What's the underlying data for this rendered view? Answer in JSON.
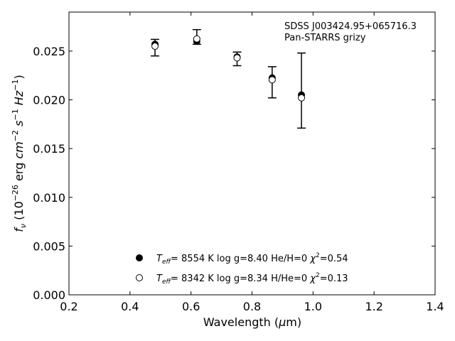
{
  "chart_data": {
    "type": "scatter",
    "annotations": [
      "SDSS J003424.95+065716.3",
      "Pan-STARRS grizy"
    ],
    "xlabel": {
      "text": "Wavelength (",
      "sym": "μ",
      "rest": "m)"
    },
    "ylabel": {
      "f": "f",
      "sub": "ν",
      "a": " (10",
      "exp1": "−26",
      "b": " erg ",
      "cm": "cm",
      "exp2": "−2",
      "s": "s",
      "exp3": "−1",
      "hz": "Hz",
      "exp4": "−1",
      "c": ")"
    },
    "xlim": [
      0.2,
      1.4
    ],
    "ylim": [
      0.0,
      0.029
    ],
    "x_ticks": [
      0.2,
      0.4,
      0.6,
      0.8,
      1.0,
      1.2,
      1.4
    ],
    "x_tick_labels": [
      "0.2",
      "0.4",
      "0.6",
      "0.8",
      "1.0",
      "1.2",
      "1.4"
    ],
    "y_ticks": [
      0.0,
      0.005,
      0.01,
      0.015,
      0.02,
      0.025
    ],
    "y_tick_labels": [
      "0.000",
      "0.005",
      "0.010",
      "0.015",
      "0.020",
      "0.025"
    ],
    "grid": false,
    "observed": {
      "x": [
        0.482,
        0.619,
        0.751,
        0.866,
        0.962
      ],
      "y": [
        0.02535,
        0.02645,
        0.0242,
        0.0218,
        0.02095
      ],
      "err": [
        0.00085,
        0.00075,
        0.0007,
        0.0016,
        0.00385
      ]
    },
    "series": [
      {
        "name": {
          "T": "T",
          "sub": "eff",
          "rest": "=  8554 K  log g=8.40  He/H=0  ",
          "chi": "χ",
          "sup": "2",
          "val": "=0.54"
        },
        "marker": "filled-circle",
        "x": [
          0.482,
          0.619,
          0.751,
          0.866,
          0.962
        ],
        "y": [
          0.0257,
          0.026,
          0.0244,
          0.02225,
          0.0205
        ]
      },
      {
        "name": {
          "T": "T",
          "sub": "eff",
          "rest": "=  8342 K  log g=8.34  H/He=0  ",
          "chi": "χ",
          "sup": "2",
          "val": "=0.13"
        },
        "marker": "open-circle",
        "x": [
          0.482,
          0.619,
          0.751,
          0.866,
          0.962
        ],
        "y": [
          0.0255,
          0.02625,
          0.0243,
          0.02205,
          0.0202
        ]
      }
    ],
    "legend_position": "lower-center"
  }
}
